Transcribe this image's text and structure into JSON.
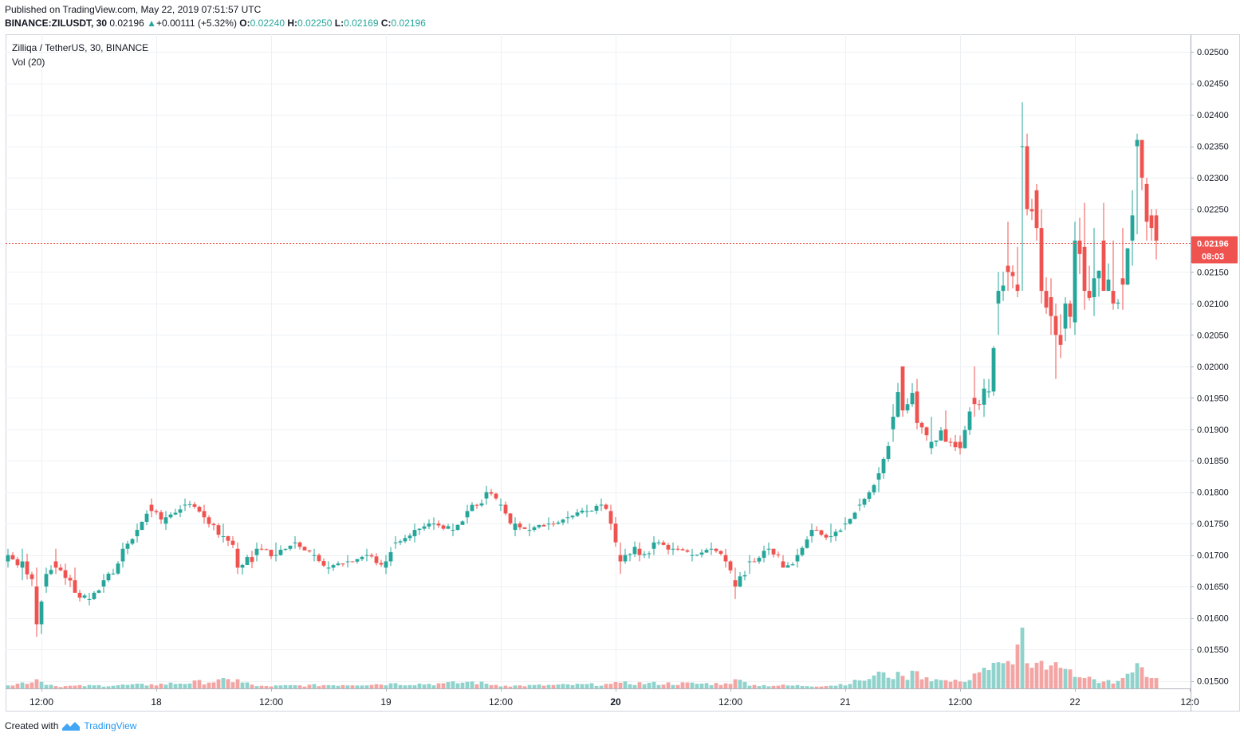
{
  "header": {
    "published": "Published on TradingView.com, May 22, 2019 07:51:57 UTC",
    "symbol": "BINANCE:ZILUSDT, 30",
    "price": "0.02196",
    "change_arrow": "▲",
    "change": "+0.00111 (+5.32%)",
    "o_label": "O:",
    "o": "0.02240",
    "h_label": "H:",
    "h": "0.02250",
    "l_label": "L:",
    "l": "0.02169",
    "c_label": "C:",
    "c": "0.02196"
  },
  "legend": {
    "title": "Zilliqa / TetherUS, 30, BINANCE",
    "vol": "Vol (20)"
  },
  "footer": {
    "created_with": "Created with",
    "brand": "TradingView"
  },
  "colors": {
    "up": "#26a69a",
    "down": "#ef5350",
    "vol_up": "#8fd3cc",
    "vol_down": "#f3a5a3",
    "grid": "#eef1f4",
    "axis_text": "#131722",
    "price_line": "#ef5350"
  },
  "chart_data": {
    "type": "candlestick",
    "interval_minutes": 30,
    "y_ticks": [
      0.015,
      0.0155,
      0.016,
      0.0165,
      0.017,
      0.0175,
      0.018,
      0.0185,
      0.019,
      0.0195,
      0.02,
      0.0205,
      0.021,
      0.0215,
      0.022,
      0.0225,
      0.023,
      0.0235,
      0.024,
      0.0245,
      0.025
    ],
    "y_tick_labels": [
      "0.01500",
      "0.01550",
      "0.01600",
      "0.01650",
      "0.01700",
      "0.01750",
      "0.01800",
      "0.01850",
      "0.01900",
      "0.01950",
      "0.02000",
      "0.02050",
      "0.02100",
      "0.02150",
      "0.02200",
      "0.02250",
      "0.02300",
      "0.02350",
      "0.02400",
      "0.02450",
      "0.02500"
    ],
    "ylim": [
      0.01488,
      0.02528
    ],
    "x_ticks": [
      {
        "label": "12:00",
        "bar": 7,
        "bold": false
      },
      {
        "label": "18",
        "bar": 31,
        "bold": false
      },
      {
        "label": "12:00",
        "bar": 55,
        "bold": false
      },
      {
        "label": "19",
        "bar": 79,
        "bold": false
      },
      {
        "label": "12:00",
        "bar": 103,
        "bold": false
      },
      {
        "label": "20",
        "bar": 127,
        "bold": true
      },
      {
        "label": "12:00",
        "bar": 151,
        "bold": false
      },
      {
        "label": "21",
        "bar": 175,
        "bold": false
      },
      {
        "label": "12:00",
        "bar": 199,
        "bold": false
      },
      {
        "label": "22",
        "bar": 223,
        "bold": false
      },
      {
        "label": "12:0",
        "bar": 247,
        "bold": false
      }
    ],
    "last_price_label": "0.02196",
    "last_price": 0.02196,
    "countdown": "08:03",
    "key_points": [
      [
        0,
        0.0169,
        0.0171,
        0.0168,
        0.017
      ],
      [
        3,
        0.0168,
        0.0171,
        0.0166,
        0.0169
      ],
      [
        6,
        0.0165,
        0.0168,
        0.0157,
        0.0159
      ],
      [
        8,
        0.0165,
        0.0168,
        0.0164,
        0.0167
      ],
      [
        10,
        0.0169,
        0.0171,
        0.0167,
        0.0168
      ],
      [
        14,
        0.0166,
        0.0168,
        0.0164,
        0.0164
      ],
      [
        17,
        0.0163,
        0.0164,
        0.0162,
        0.0163
      ],
      [
        20,
        0.0165,
        0.0167,
        0.0164,
        0.0166
      ],
      [
        24,
        0.0169,
        0.0172,
        0.0168,
        0.0171
      ],
      [
        27,
        0.0173,
        0.0175,
        0.0172,
        0.0174
      ],
      [
        30,
        0.0178,
        0.0179,
        0.0176,
        0.0177
      ],
      [
        33,
        0.0175,
        0.0177,
        0.0174,
        0.0176
      ],
      [
        37,
        0.0178,
        0.0179,
        0.0177,
        0.0178
      ],
      [
        41,
        0.0177,
        0.0178,
        0.0175,
        0.0176
      ],
      [
        45,
        0.0173,
        0.0175,
        0.0172,
        0.0173
      ],
      [
        48,
        0.0171,
        0.0172,
        0.0167,
        0.0168
      ],
      [
        52,
        0.017,
        0.0172,
        0.0169,
        0.0171
      ],
      [
        56,
        0.017,
        0.0172,
        0.0169,
        0.017
      ],
      [
        60,
        0.0172,
        0.0173,
        0.0171,
        0.0172
      ],
      [
        64,
        0.017,
        0.0171,
        0.0169,
        0.017
      ],
      [
        67,
        0.0168,
        0.0169,
        0.0167,
        0.0168
      ],
      [
        71,
        0.0169,
        0.017,
        0.0168,
        0.0169
      ],
      [
        75,
        0.017,
        0.0171,
        0.0169,
        0.017
      ],
      [
        79,
        0.0168,
        0.017,
        0.0167,
        0.0169
      ],
      [
        81,
        0.0172,
        0.0173,
        0.0171,
        0.0172
      ],
      [
        85,
        0.0173,
        0.0175,
        0.0172,
        0.0174
      ],
      [
        89,
        0.0175,
        0.0176,
        0.0174,
        0.0175
      ],
      [
        93,
        0.0174,
        0.0175,
        0.0173,
        0.0174
      ],
      [
        96,
        0.0176,
        0.0178,
        0.0175,
        0.0177
      ],
      [
        100,
        0.0179,
        0.0181,
        0.0178,
        0.018
      ],
      [
        103,
        0.0178,
        0.0179,
        0.0177,
        0.0178
      ],
      [
        106,
        0.0174,
        0.0176,
        0.0173,
        0.0175
      ],
      [
        109,
        0.0174,
        0.0175,
        0.0173,
        0.0174
      ],
      [
        113,
        0.0175,
        0.0176,
        0.0174,
        0.0175
      ],
      [
        117,
        0.0176,
        0.0177,
        0.0175,
        0.0176
      ],
      [
        121,
        0.0177,
        0.0178,
        0.0176,
        0.0177
      ],
      [
        124,
        0.0178,
        0.0179,
        0.0177,
        0.0178
      ],
      [
        126,
        0.0177,
        0.0178,
        0.0174,
        0.0175
      ],
      [
        128,
        0.017,
        0.0172,
        0.0167,
        0.0169
      ],
      [
        132,
        0.0171,
        0.0172,
        0.0169,
        0.017
      ],
      [
        135,
        0.0171,
        0.0173,
        0.017,
        0.0172
      ],
      [
        139,
        0.0171,
        0.0172,
        0.017,
        0.0171
      ],
      [
        143,
        0.017,
        0.0171,
        0.0169,
        0.017
      ],
      [
        147,
        0.0171,
        0.0172,
        0.017,
        0.0171
      ],
      [
        150,
        0.017,
        0.0171,
        0.0168,
        0.0169
      ],
      [
        152,
        0.0166,
        0.0168,
        0.0163,
        0.0165
      ],
      [
        155,
        0.0169,
        0.017,
        0.0167,
        0.0169
      ],
      [
        159,
        0.0171,
        0.0172,
        0.017,
        0.0171
      ],
      [
        162,
        0.0169,
        0.017,
        0.0168,
        0.0168
      ],
      [
        165,
        0.0169,
        0.0171,
        0.0168,
        0.017
      ],
      [
        168,
        0.0173,
        0.0175,
        0.0172,
        0.0174
      ],
      [
        172,
        0.0173,
        0.0175,
        0.0172,
        0.0173
      ],
      [
        175,
        0.0175,
        0.0176,
        0.0174,
        0.0175
      ],
      [
        178,
        0.0178,
        0.0179,
        0.0177,
        0.0178
      ],
      [
        182,
        0.0182,
        0.0184,
        0.018,
        0.0183
      ],
      [
        185,
        0.019,
        0.0194,
        0.0188,
        0.0192
      ],
      [
        187,
        0.02,
        0.02,
        0.0192,
        0.0193
      ],
      [
        190,
        0.0196,
        0.0198,
        0.019,
        0.0191
      ],
      [
        193,
        0.0187,
        0.0192,
        0.0186,
        0.0188
      ],
      [
        196,
        0.019,
        0.0193,
        0.0188,
        0.0188
      ],
      [
        199,
        0.0188,
        0.0189,
        0.0186,
        0.0187
      ],
      [
        202,
        0.0195,
        0.02,
        0.0192,
        0.0194
      ],
      [
        205,
        0.0196,
        0.0198,
        0.0195,
        0.0196
      ],
      [
        207,
        0.021,
        0.0215,
        0.0205,
        0.0212
      ],
      [
        209,
        0.0216,
        0.0223,
        0.0212,
        0.0215
      ],
      [
        211,
        0.0213,
        0.0219,
        0.0211,
        0.0212
      ],
      [
        212,
        0.0235,
        0.0242,
        0.0212,
        0.0235
      ],
      [
        213,
        0.0235,
        0.0237,
        0.0224,
        0.0225
      ],
      [
        215,
        0.0228,
        0.0229,
        0.022,
        0.0222
      ],
      [
        216,
        0.0222,
        0.0225,
        0.021,
        0.0212
      ],
      [
        218,
        0.0211,
        0.0214,
        0.0205,
        0.0208
      ],
      [
        219,
        0.0208,
        0.021,
        0.0198,
        0.0205
      ],
      [
        221,
        0.0206,
        0.0211,
        0.0204,
        0.021
      ],
      [
        223,
        0.0207,
        0.0223,
        0.0205,
        0.022
      ],
      [
        225,
        0.0219,
        0.0226,
        0.0209,
        0.0212
      ],
      [
        227,
        0.0211,
        0.0222,
        0.0208,
        0.0214
      ],
      [
        229,
        0.022,
        0.0226,
        0.0212,
        0.0212
      ],
      [
        231,
        0.0212,
        0.022,
        0.0209,
        0.021
      ],
      [
        233,
        0.0214,
        0.0222,
        0.0209,
        0.0213
      ],
      [
        235,
        0.022,
        0.0228,
        0.0216,
        0.0224
      ],
      [
        236,
        0.0235,
        0.0237,
        0.0221,
        0.0236
      ],
      [
        237,
        0.0236,
        0.0236,
        0.0228,
        0.023
      ],
      [
        238,
        0.0229,
        0.023,
        0.022,
        0.0223
      ],
      [
        239,
        0.0224,
        0.0225,
        0.022,
        0.0222
      ],
      [
        240,
        0.0224,
        0.0225,
        0.0217,
        0.022
      ]
    ],
    "volume_key_points": [
      [
        0,
        0.13
      ],
      [
        6,
        0.4
      ],
      [
        10,
        0.1
      ],
      [
        30,
        0.18
      ],
      [
        48,
        0.4
      ],
      [
        52,
        0.1
      ],
      [
        80,
        0.22
      ],
      [
        90,
        0.22
      ],
      [
        97,
        0.3
      ],
      [
        104,
        0.12
      ],
      [
        126,
        0.2
      ],
      [
        128,
        0.25
      ],
      [
        150,
        0.22
      ],
      [
        152,
        0.4
      ],
      [
        156,
        0.15
      ],
      [
        172,
        0.12
      ],
      [
        178,
        0.35
      ],
      [
        183,
        0.7
      ],
      [
        187,
        0.55
      ],
      [
        190,
        0.75
      ],
      [
        194,
        0.4
      ],
      [
        199,
        0.3
      ],
      [
        202,
        0.65
      ],
      [
        204,
        0.9
      ],
      [
        208,
        1.1
      ],
      [
        210,
        1.05
      ],
      [
        212,
        2.65
      ],
      [
        214,
        0.9
      ],
      [
        216,
        1.2
      ],
      [
        218,
        1.0
      ],
      [
        221,
        0.85
      ],
      [
        223,
        0.5
      ],
      [
        225,
        0.45
      ],
      [
        227,
        0.4
      ],
      [
        229,
        0.3
      ],
      [
        233,
        0.45
      ],
      [
        236,
        1.1
      ],
      [
        238,
        0.5
      ],
      [
        240,
        0.45
      ]
    ],
    "volume_scale": [
      0,
      10
    ]
  }
}
